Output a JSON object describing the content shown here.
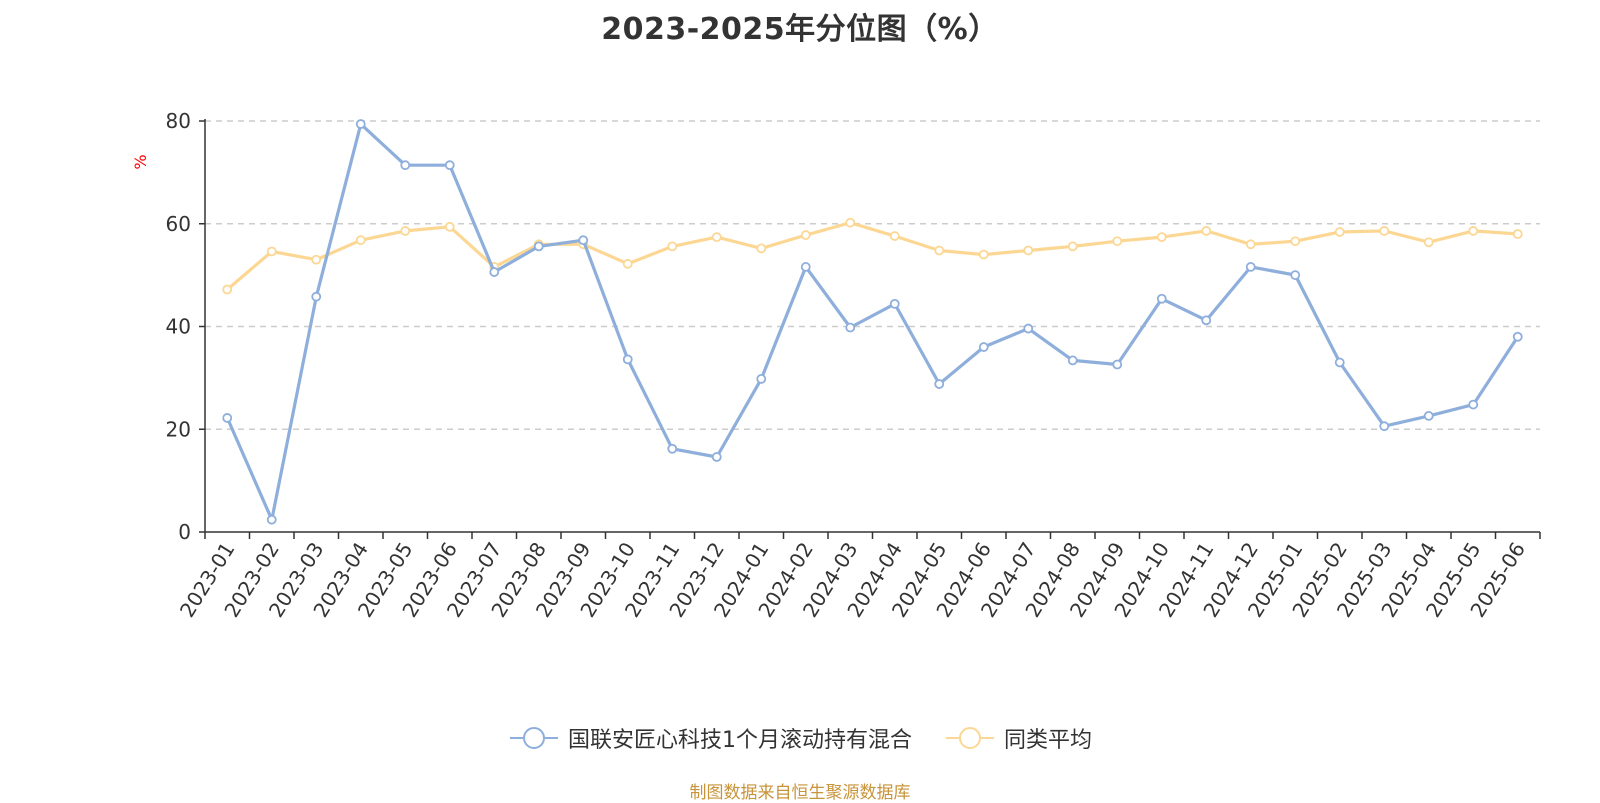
{
  "chart_data": {
    "type": "line",
    "title": "2023-2025年分位图（%）",
    "ylabel": "%",
    "xlabel": "",
    "ylim": [
      0,
      80
    ],
    "yticks": [
      0,
      20,
      40,
      60,
      80
    ],
    "grid": true,
    "legend_position": "bottom",
    "categories": [
      "2023-01",
      "2023-02",
      "2023-03",
      "2023-04",
      "2023-05",
      "2023-06",
      "2023-07",
      "2023-08",
      "2023-09",
      "2023-10",
      "2023-11",
      "2023-12",
      "2024-01",
      "2024-02",
      "2024-03",
      "2024-04",
      "2024-05",
      "2024-06",
      "2024-07",
      "2024-08",
      "2024-09",
      "2024-10",
      "2024-11",
      "2024-12",
      "2025-01",
      "2025-02",
      "2025-03",
      "2025-04",
      "2025-05",
      "2025-06"
    ],
    "series": [
      {
        "name": "国联安匠心科技1个月滚动持有混合",
        "color": "#8eaedb",
        "values": [
          22.2,
          2.4,
          45.8,
          79.4,
          71.4,
          71.4,
          50.6,
          55.6,
          56.8,
          33.6,
          16.2,
          14.6,
          29.8,
          51.6,
          39.8,
          44.4,
          28.8,
          36.0,
          39.6,
          33.4,
          32.6,
          45.4,
          41.2,
          51.6,
          50.0,
          33.0,
          20.6,
          22.6,
          24.8,
          38.0
        ]
      },
      {
        "name": "同类平均",
        "color": "#fcd794",
        "values": [
          47.2,
          54.6,
          53.0,
          56.8,
          58.6,
          59.4,
          51.6,
          56.0,
          56.0,
          52.2,
          55.6,
          57.4,
          55.2,
          57.8,
          60.2,
          57.6,
          54.8,
          54.0,
          54.8,
          55.6,
          56.6,
          57.4,
          58.6,
          56.0,
          56.6,
          58.4,
          58.6,
          56.4,
          58.6,
          58.0
        ]
      }
    ]
  },
  "colors": {
    "series_1": "#8eaedb",
    "series_2": "#fcd794",
    "ylabel": "#ff0000",
    "source_note": "#c8943a",
    "grid": "#cccccc",
    "axis": "#333333"
  },
  "footer": {
    "source": "制图数据来自恒生聚源数据库"
  }
}
